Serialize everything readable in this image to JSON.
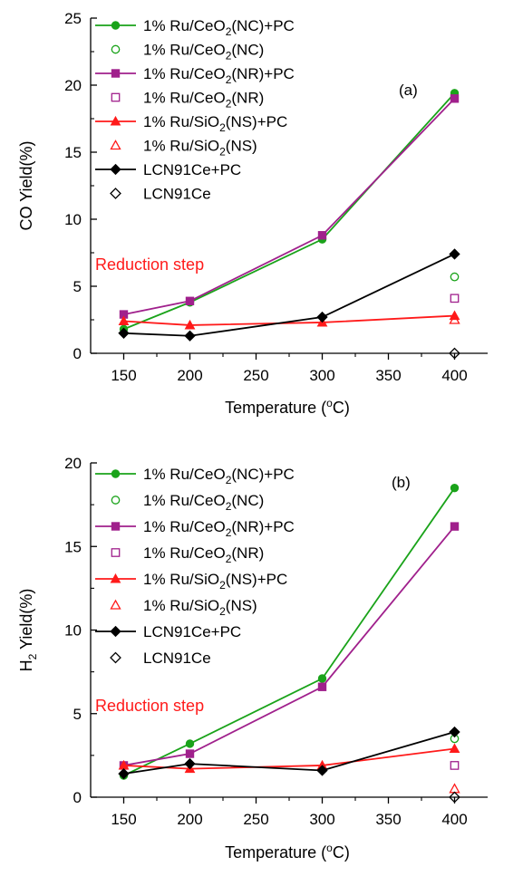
{
  "chart_data": [
    {
      "type": "line",
      "panel_label": "(a)",
      "annotation": "Reduction step",
      "xlabel": "Temperature (°C)",
      "xlabel_parts": [
        "Temperature (",
        "o",
        "C)"
      ],
      "ylabel": "CO Yield(%)",
      "ylabel_parts": [
        "CO Yield(%)"
      ],
      "xlim": [
        125,
        425
      ],
      "ylim": [
        0,
        25
      ],
      "xticks": [
        150,
        200,
        250,
        300,
        350,
        400
      ],
      "yticks": [
        0,
        5,
        10,
        15,
        20,
        25
      ],
      "legend_position": "top-left",
      "series": [
        {
          "name": "1% Ru/CeO2(NC)+PC",
          "label_parts": [
            "1% Ru/CeO",
            "2",
            "(NC)+PC"
          ],
          "color": "#1aa31a",
          "marker": "circle",
          "filled": true,
          "line": true,
          "x": [
            150,
            200,
            300,
            400
          ],
          "y": [
            1.8,
            3.8,
            8.5,
            19.4
          ]
        },
        {
          "name": "1% Ru/CeO2(NC)",
          "label_parts": [
            "1% Ru/CeO",
            "2",
            "(NC)"
          ],
          "color": "#1aa31a",
          "marker": "circle",
          "filled": false,
          "line": false,
          "x": [
            400
          ],
          "y": [
            5.7
          ]
        },
        {
          "name": "1% Ru/CeO2(NR)+PC",
          "label_parts": [
            "1% Ru/CeO",
            "2",
            "(NR)+PC"
          ],
          "color": "#a0208c",
          "marker": "square",
          "filled": true,
          "line": true,
          "x": [
            150,
            200,
            300,
            400
          ],
          "y": [
            2.9,
            3.9,
            8.8,
            19.0
          ]
        },
        {
          "name": "1% Ru/CeO2(NR)",
          "label_parts": [
            "1% Ru/CeO",
            "2",
            "(NR)"
          ],
          "color": "#a0208c",
          "marker": "square",
          "filled": false,
          "line": false,
          "x": [
            400
          ],
          "y": [
            4.1
          ]
        },
        {
          "name": "1% Ru/SiO2(NS)+PC",
          "label_parts": [
            "1% Ru/SiO",
            "2",
            "(NS)+PC"
          ],
          "color": "#ff1a1a",
          "marker": "triangle",
          "filled": true,
          "line": true,
          "x": [
            150,
            200,
            300,
            400
          ],
          "y": [
            2.4,
            2.1,
            2.3,
            2.8
          ]
        },
        {
          "name": "1% Ru/SiO2(NS)",
          "label_parts": [
            "1% Ru/SiO",
            "2",
            "(NS)"
          ],
          "color": "#ff1a1a",
          "marker": "triangle",
          "filled": false,
          "line": false,
          "x": [
            400
          ],
          "y": [
            2.5
          ]
        },
        {
          "name": "LCN91Ce+PC",
          "label_parts": [
            "LCN91Ce+PC"
          ],
          "color": "#000000",
          "marker": "diamond",
          "filled": true,
          "line": true,
          "x": [
            150,
            200,
            300,
            400
          ],
          "y": [
            1.5,
            1.3,
            2.7,
            7.4
          ]
        },
        {
          "name": "LCN91Ce",
          "label_parts": [
            "LCN91Ce"
          ],
          "color": "#000000",
          "marker": "diamond",
          "filled": false,
          "line": false,
          "x": [
            400
          ],
          "y": [
            0.0
          ]
        }
      ]
    },
    {
      "type": "line",
      "panel_label": "(b)",
      "annotation": "Reduction step",
      "xlabel": "Temperature (°C)",
      "xlabel_parts": [
        "Temperature (",
        "o",
        "C)"
      ],
      "ylabel": "H2 Yield(%)",
      "ylabel_parts": [
        "H",
        "2",
        " Yield(%)"
      ],
      "xlim": [
        125,
        425
      ],
      "ylim": [
        0,
        20
      ],
      "xticks": [
        150,
        200,
        250,
        300,
        350,
        400
      ],
      "yticks": [
        0,
        5,
        10,
        15,
        20
      ],
      "legend_position": "top-left",
      "series": [
        {
          "name": "1% Ru/CeO2(NC)+PC",
          "label_parts": [
            "1% Ru/CeO",
            "2",
            "(NC)+PC"
          ],
          "color": "#1aa31a",
          "marker": "circle",
          "filled": true,
          "line": true,
          "x": [
            150,
            200,
            300,
            400
          ],
          "y": [
            1.3,
            3.2,
            7.1,
            18.5
          ]
        },
        {
          "name": "1% Ru/CeO2(NC)",
          "label_parts": [
            "1% Ru/CeO",
            "2",
            "(NC)"
          ],
          "color": "#1aa31a",
          "marker": "circle",
          "filled": false,
          "line": false,
          "x": [
            400
          ],
          "y": [
            3.5
          ]
        },
        {
          "name": "1% Ru/CeO2(NR)+PC",
          "label_parts": [
            "1% Ru/CeO",
            "2",
            "(NR)+PC"
          ],
          "color": "#a0208c",
          "marker": "square",
          "filled": true,
          "line": true,
          "x": [
            150,
            200,
            300,
            400
          ],
          "y": [
            1.9,
            2.6,
            6.6,
            16.2
          ]
        },
        {
          "name": "1% Ru/CeO2(NR)",
          "label_parts": [
            "1% Ru/CeO",
            "2",
            "(NR)"
          ],
          "color": "#a0208c",
          "marker": "square",
          "filled": false,
          "line": false,
          "x": [
            400
          ],
          "y": [
            1.9
          ]
        },
        {
          "name": "1% Ru/SiO2(NS)+PC",
          "label_parts": [
            "1% Ru/SiO",
            "2",
            "(NS)+PC"
          ],
          "color": "#ff1a1a",
          "marker": "triangle",
          "filled": true,
          "line": true,
          "x": [
            150,
            200,
            300,
            400
          ],
          "y": [
            1.9,
            1.7,
            1.9,
            2.9
          ]
        },
        {
          "name": "1% Ru/SiO2(NS)",
          "label_parts": [
            "1% Ru/SiO",
            "2",
            "(NS)"
          ],
          "color": "#ff1a1a",
          "marker": "triangle",
          "filled": false,
          "line": false,
          "x": [
            400
          ],
          "y": [
            0.5
          ]
        },
        {
          "name": "LCN91Ce+PC",
          "label_parts": [
            "LCN91Ce+PC"
          ],
          "color": "#000000",
          "marker": "diamond",
          "filled": true,
          "line": true,
          "x": [
            150,
            200,
            300,
            400
          ],
          "y": [
            1.4,
            2.0,
            1.6,
            3.9
          ]
        },
        {
          "name": "LCN91Ce",
          "label_parts": [
            "LCN91Ce"
          ],
          "color": "#000000",
          "marker": "diamond",
          "filled": false,
          "line": false,
          "x": [
            400
          ],
          "y": [
            0.0
          ]
        }
      ]
    }
  ]
}
